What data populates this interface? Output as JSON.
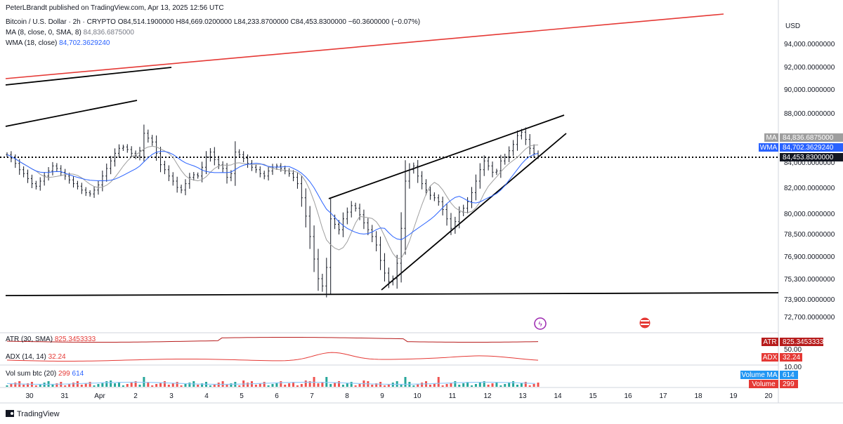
{
  "publisher": "PeterLBrandt published on TradingView.com, Apr 13, 2025 12:56 UTC",
  "header": {
    "symbol": "Bitcoin / U.S. Dollar · 2h · CRYPTO",
    "ohlc": "O84,514.1900000 H84,669.0200000 L84,233.8700000 C84,453.8300000 −60.3600000 (−0.07%)",
    "ma_label": "MA (8, close, 0, SMA, 8)",
    "ma_value": "84,836.6875000",
    "wma_label": "WMA (18, close)",
    "wma_value": "84,702.3629240"
  },
  "indicators": {
    "atr_label": "ATR (30, SMA)",
    "atr_value": "825.3453333",
    "adx_label": "ADX (14, 14)",
    "adx_value": "32.24",
    "vol_label": "Vol sum btc (20)",
    "vol_value": "299",
    "vol_ma_value": "614"
  },
  "tags": {
    "ma_tag": "MA",
    "ma_val": "84,836.6875000",
    "wma_tag": "WMA",
    "wma_val": "84,702.3629240",
    "last_val": "84,453.8300000",
    "atr_tag": "ATR",
    "adx_tag": "ADX",
    "volma_tag": "Volume MA",
    "vol_tag": "Volume",
    "adx_ticks": [
      "50.00",
      "10.00"
    ]
  },
  "currency": "USD",
  "footer_brand": "TradingView",
  "colors": {
    "up": "#26a69a",
    "down": "#ef5350",
    "ma": "#9e9e9e",
    "wma": "#2962ff",
    "trend_red": "#e53935",
    "trend": "#000000"
  },
  "chart_data": {
    "type": "line",
    "y_ticks": [
      "94,000.0000000",
      "92,000.0000000",
      "90,000.0000000",
      "88,000.0000000",
      "86,000.0000000",
      "84,000.0000000",
      "82,000.0000000",
      "80,000.0000000",
      "78,500.0000000",
      "76,900.0000000",
      "75,300.0000000",
      "73,900.0000000",
      "72,700.0000000"
    ],
    "x_ticks": [
      "30",
      "31",
      "Apr",
      "2",
      "3",
      "4",
      "5",
      "6",
      "7",
      "8",
      "9",
      "10",
      "11",
      "12",
      "13",
      "14",
      "15",
      "16",
      "17",
      "18",
      "19",
      "20"
    ],
    "log_scale": true,
    "price_closes": [
      84600,
      84300,
      83900,
      83400,
      83100,
      82700,
      82300,
      82100,
      82500,
      82900,
      83300,
      83700,
      83500,
      83200,
      82900,
      82600,
      82300,
      82100,
      81800,
      81600,
      81500,
      81800,
      82200,
      82900,
      83500,
      84100,
      84700,
      85100,
      85200,
      85000,
      84700,
      84500,
      84900,
      86300,
      85900,
      85600,
      84700,
      83800,
      83400,
      82900,
      82500,
      82000,
      81800,
      82300,
      82800,
      83000,
      82900,
      83600,
      84400,
      84800,
      84200,
      83800,
      83500,
      82800,
      83100,
      84800,
      84600,
      84300,
      83900,
      83600,
      83400,
      83100,
      82900,
      83300,
      83600,
      83700,
      83500,
      83300,
      83100,
      82800,
      82300,
      81200,
      79800,
      78300,
      76700,
      75300,
      74800,
      76100,
      79600,
      79200,
      78800,
      79600,
      80100,
      80600,
      80400,
      79900,
      79300,
      78800,
      78300,
      77700,
      76600,
      75700,
      75100,
      75300,
      76400,
      78900,
      82500,
      83400,
      83700,
      82900,
      82300,
      81800,
      81400,
      81200,
      80900,
      80300,
      79600,
      78900,
      79400,
      80100,
      80400,
      80900,
      81600,
      82500,
      83400,
      84100,
      83700,
      83200,
      83300,
      84100,
      84400,
      84900,
      85400,
      86100,
      86400,
      85800,
      85100,
      84700,
      84500
    ],
    "ma_values": [
      84836.69
    ],
    "wma_values": [
      84702.36
    ],
    "atr": 825.3453333,
    "adx": 32.24,
    "volume": 299,
    "volume_ma": 614
  }
}
